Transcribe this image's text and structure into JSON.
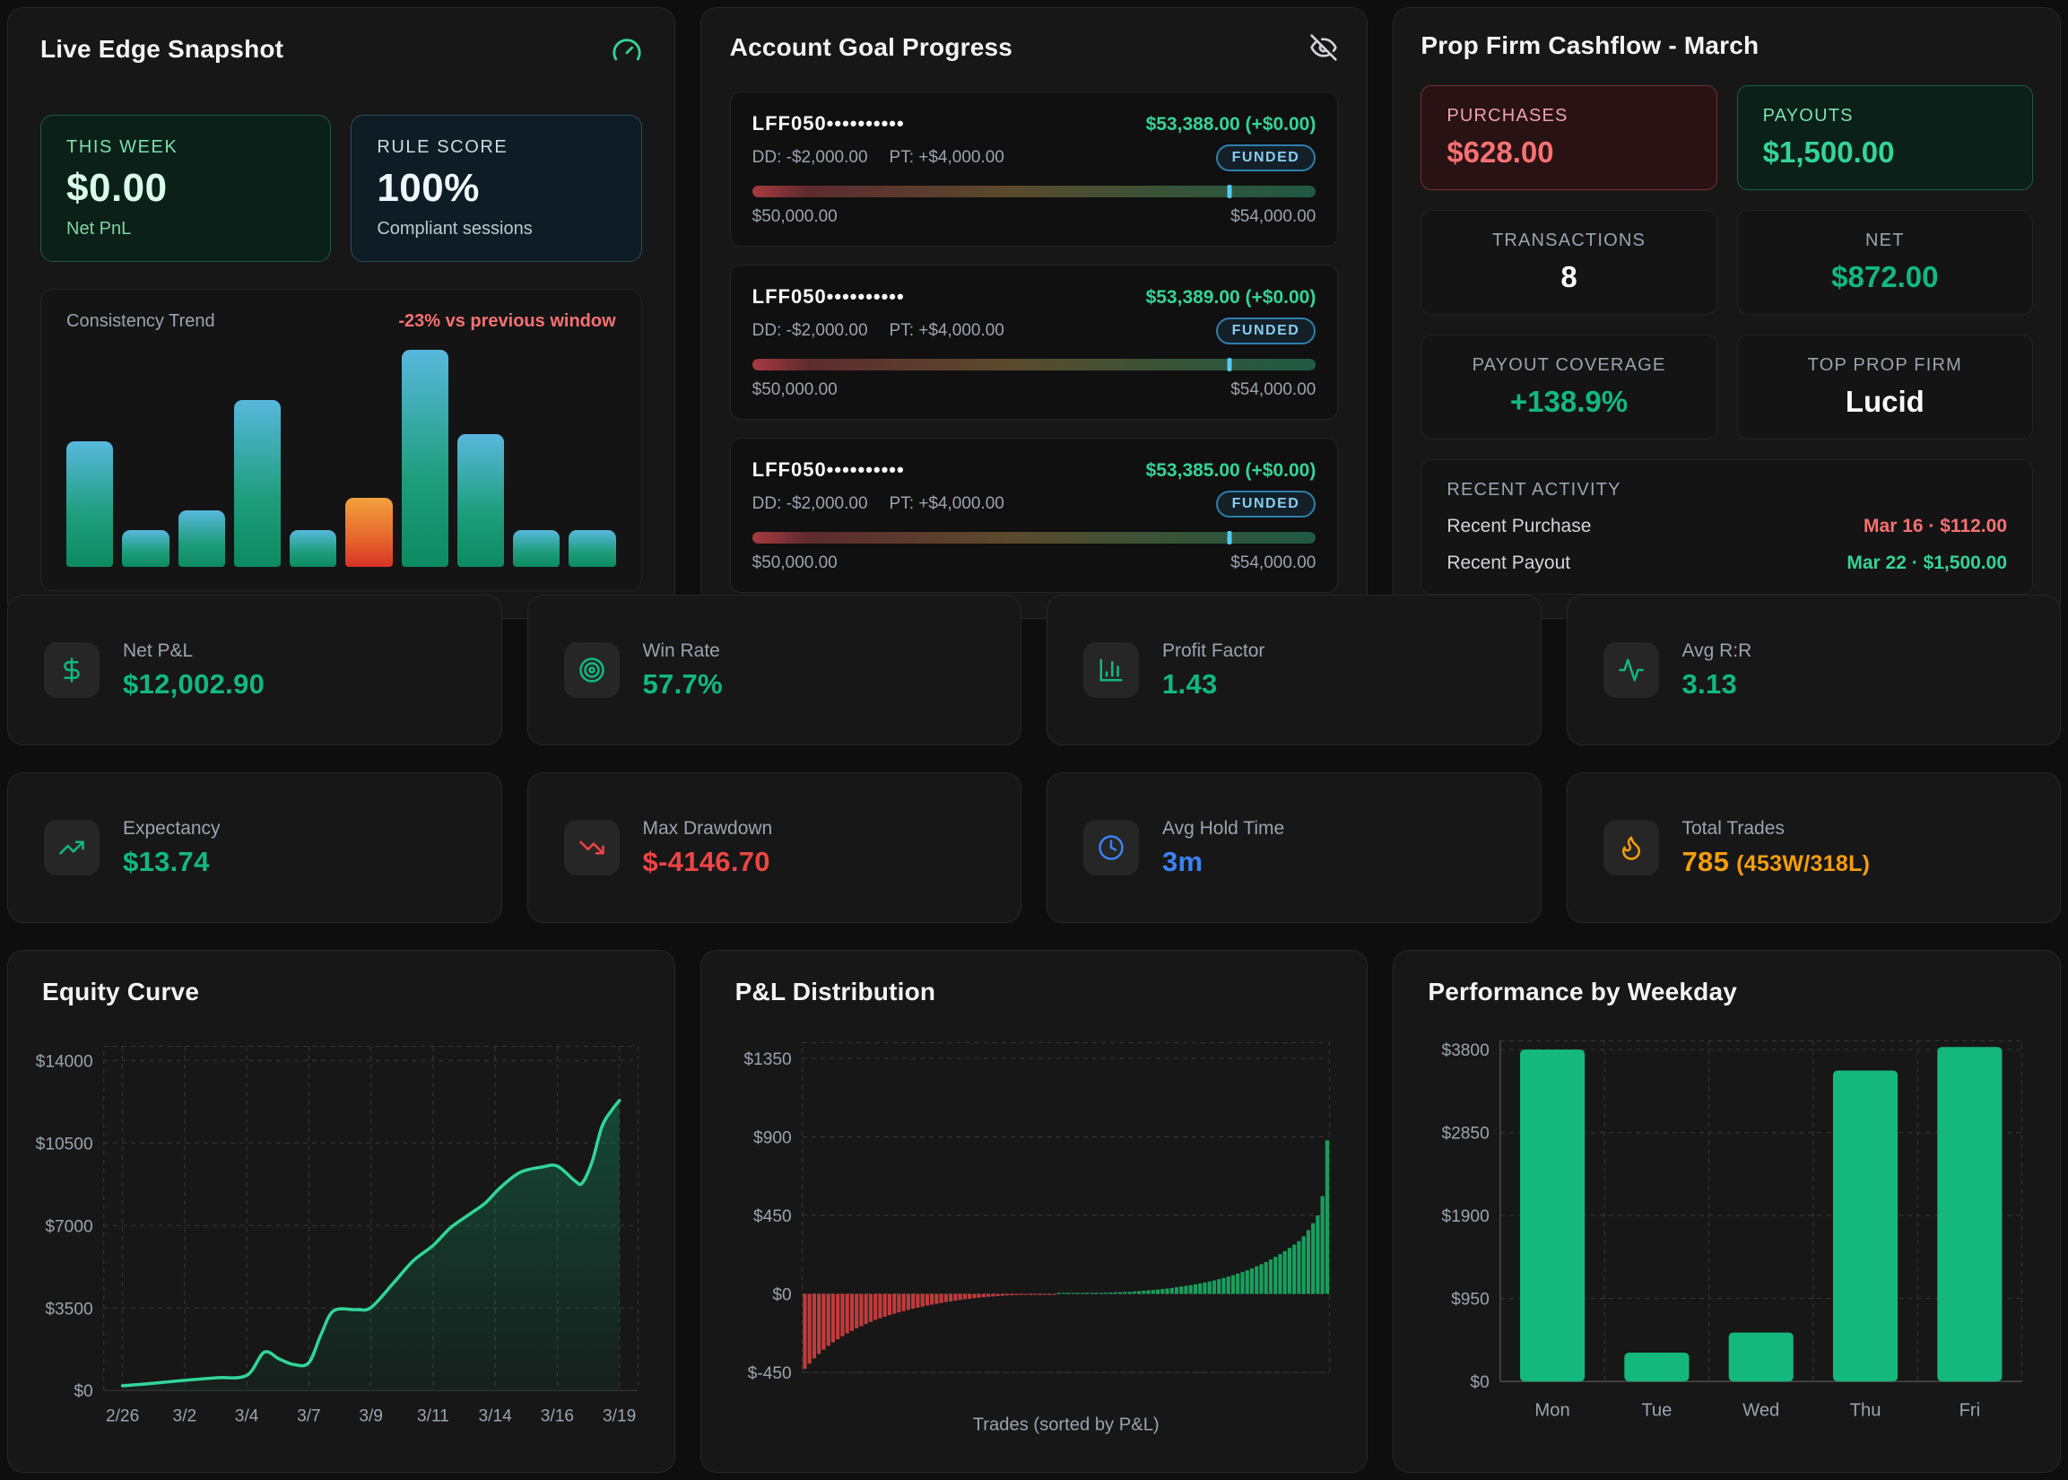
{
  "live_edge": {
    "title": "Live Edge Snapshot",
    "gauge_icon": "gauge-icon",
    "this_week": {
      "label": "THIS WEEK",
      "value": "$0.00",
      "caption": "Net PnL"
    },
    "rule_score": {
      "label": "RULE SCORE",
      "value": "100%",
      "caption": "Compliant sessions"
    },
    "consistency": {
      "label": "Consistency Trend",
      "delta": "-23% vs previous window"
    }
  },
  "account_goals": {
    "title": "Account Goal Progress",
    "eye_icon": "eye-off-icon",
    "accounts": [
      {
        "name": "LFF050••••••••••",
        "value": "$53,388.00 (+$0.00)",
        "dd": "DD: -$2,000.00",
        "pt": "PT: +$4,000.00",
        "status": "FUNDED",
        "min": "$50,000.00",
        "max": "$54,000.00",
        "progress_pct": 84.7
      },
      {
        "name": "LFF050••••••••••",
        "value": "$53,389.00 (+$0.00)",
        "dd": "DD: -$2,000.00",
        "pt": "PT: +$4,000.00",
        "status": "FUNDED",
        "min": "$50,000.00",
        "max": "$54,000.00",
        "progress_pct": 84.73
      },
      {
        "name": "LFF050••••••••••",
        "value": "$53,385.00 (+$0.00)",
        "dd": "DD: -$2,000.00",
        "pt": "PT: +$4,000.00",
        "status": "FUNDED",
        "min": "$50,000.00",
        "max": "$54,000.00",
        "progress_pct": 84.63
      }
    ]
  },
  "cashflow": {
    "title": "Prop Firm Cashflow - March",
    "purchases": {
      "label": "PURCHASES",
      "value": "$628.00"
    },
    "payouts": {
      "label": "PAYOUTS",
      "value": "$1,500.00"
    },
    "transactions": {
      "label": "TRANSACTIONS",
      "value": "8"
    },
    "net": {
      "label": "NET",
      "value": "$872.00"
    },
    "coverage": {
      "label": "PAYOUT COVERAGE",
      "value": "+138.9%"
    },
    "top_firm": {
      "label": "TOP PROP FIRM",
      "value": "Lucid"
    },
    "recent": {
      "label": "RECENT ACTIVITY",
      "rows": [
        {
          "label": "Recent Purchase",
          "value": "Mar 16 · $112.00",
          "color": "#f87171"
        },
        {
          "label": "Recent Payout",
          "value": "Mar 22 · $1,500.00",
          "color": "#34d399"
        }
      ]
    }
  },
  "stats": [
    {
      "icon": "dollar-sign-icon",
      "label": "Net P&L",
      "value": "$12,002.90",
      "color": "#10b981"
    },
    {
      "icon": "target-icon",
      "label": "Win Rate",
      "value": "57.7%",
      "color": "#10b981"
    },
    {
      "icon": "bar-chart-icon",
      "label": "Profit Factor",
      "value": "1.43",
      "color": "#10b981"
    },
    {
      "icon": "activity-icon",
      "label": "Avg R:R",
      "value": "3.13",
      "color": "#10b981"
    },
    {
      "icon": "trending-up-icon",
      "label": "Expectancy",
      "value": "$13.74",
      "color": "#10b981"
    },
    {
      "icon": "trending-down-icon",
      "label": "Max Drawdown",
      "value": "$-4146.70",
      "color": "#ef4444"
    },
    {
      "icon": "clock-icon",
      "label": "Avg Hold Time",
      "value": "3m",
      "color": "#3b82f6"
    },
    {
      "icon": "flame-icon",
      "label": "Total Trades",
      "value": "785",
      "suffix": "(453W/318L)",
      "color": "#f59e0b"
    }
  ],
  "chart_data": {
    "consistency": {
      "type": "bar",
      "values_pct_of_max": [
        58,
        17,
        26,
        77,
        17,
        32,
        100,
        61,
        17,
        17
      ],
      "colors": [
        "teal",
        "teal",
        "teal",
        "teal",
        "teal",
        "orange",
        "teal",
        "teal",
        "teal",
        "teal"
      ]
    },
    "equity_curve": {
      "type": "area",
      "title": "Equity Curve",
      "x_ticks": [
        "2/26",
        "3/2",
        "3/4",
        "3/7",
        "3/9",
        "3/11",
        "3/14",
        "3/16",
        "3/19"
      ],
      "y_ticks": [
        0,
        3500,
        7000,
        10500,
        14000
      ],
      "ylim": [
        0,
        14600
      ],
      "line_color": "#31d69a",
      "points": [
        [
          0,
          200
        ],
        [
          0.06,
          300
        ],
        [
          0.125,
          430
        ],
        [
          0.19,
          540
        ],
        [
          0.25,
          640
        ],
        [
          0.285,
          1620
        ],
        [
          0.315,
          1340
        ],
        [
          0.345,
          1100
        ],
        [
          0.375,
          1180
        ],
        [
          0.4,
          2400
        ],
        [
          0.425,
          3380
        ],
        [
          0.47,
          3430
        ],
        [
          0.5,
          3520
        ],
        [
          0.545,
          4550
        ],
        [
          0.585,
          5500
        ],
        [
          0.625,
          6150
        ],
        [
          0.66,
          6900
        ],
        [
          0.7,
          7500
        ],
        [
          0.73,
          7950
        ],
        [
          0.76,
          8600
        ],
        [
          0.8,
          9250
        ],
        [
          0.845,
          9480
        ],
        [
          0.875,
          9520
        ],
        [
          0.91,
          8900
        ],
        [
          0.925,
          8800
        ],
        [
          0.945,
          9700
        ],
        [
          0.965,
          11200
        ],
        [
          0.985,
          11900
        ],
        [
          1,
          12300
        ]
      ]
    },
    "pnl_distribution": {
      "type": "bar",
      "title": "P&L Distribution",
      "xlabel": "Trades (sorted by P&L)",
      "y_ticks": [
        1350,
        900,
        450,
        0,
        -450
      ],
      "ylim": [
        -450,
        1440
      ],
      "neg_color": "#be3c3c",
      "pos_color": "#1a9e5e",
      "values": [
        -430,
        -400,
        -370,
        -345,
        -320,
        -298,
        -278,
        -260,
        -243,
        -227,
        -212,
        -198,
        -185,
        -173,
        -161,
        -150,
        -140,
        -131,
        -122,
        -114,
        -106,
        -99,
        -92,
        -85,
        -79,
        -73,
        -67,
        -62,
        -57,
        -52,
        -47,
        -43,
        -39,
        -35,
        -31,
        -28,
        -25,
        -22,
        -19,
        -17,
        -15,
        -13,
        -11,
        -9,
        -8,
        -7,
        -6,
        -5,
        -4,
        -3,
        -2,
        -2,
        -1,
        -1,
        1,
        1,
        2,
        2,
        3,
        3,
        4,
        4,
        5,
        6,
        7,
        8,
        9,
        10,
        11,
        12,
        14,
        16,
        18,
        20,
        22,
        25,
        28,
        31,
        34,
        38,
        42,
        46,
        50,
        55,
        60,
        65,
        71,
        77,
        84,
        91,
        99,
        107,
        116,
        125,
        135,
        146,
        158,
        170,
        183,
        197,
        212,
        228,
        245,
        263,
        282,
        302,
        330,
        365,
        405,
        450,
        560,
        880
      ]
    },
    "weekday": {
      "type": "bar",
      "title": "Performance by Weekday",
      "categories": [
        "Mon",
        "Tue",
        "Wed",
        "Thu",
        "Fri"
      ],
      "values": [
        3800,
        330,
        560,
        3560,
        3830
      ],
      "y_ticks": [
        0,
        950,
        1900,
        2850,
        3800
      ],
      "ylim": [
        0,
        3900
      ],
      "bar_color": "#14b87d"
    }
  }
}
